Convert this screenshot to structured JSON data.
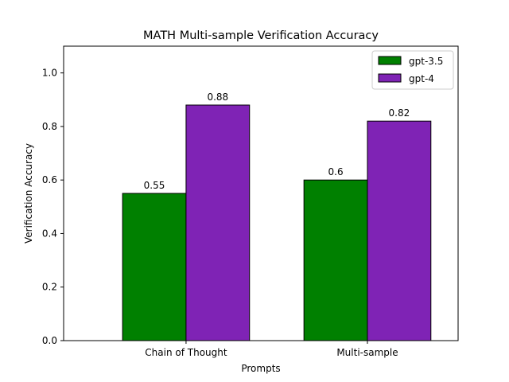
{
  "chart_data": {
    "type": "bar",
    "title": "MATH Multi-sample Verification Accuracy",
    "xlabel": "Prompts",
    "ylabel": "Verification Accuracy",
    "categories": [
      "Chain of Thought",
      "Multi-sample"
    ],
    "series": [
      {
        "name": "gpt-3.5",
        "values": [
          0.55,
          0.6
        ],
        "labels": [
          "0.55",
          "0.6"
        ],
        "color": "#008000"
      },
      {
        "name": "gpt-4",
        "values": [
          0.88,
          0.82
        ],
        "labels": [
          "0.88",
          "0.82"
        ],
        "color": "#7f23b5"
      }
    ],
    "ylim": [
      0,
      1.1
    ],
    "yticks": [
      0.0,
      0.2,
      0.4,
      0.6,
      0.8,
      1.0
    ],
    "ytick_labels": [
      "0.0",
      "0.2",
      "0.4",
      "0.6",
      "0.8",
      "1.0"
    ],
    "grid": false,
    "legend_position": "top-right",
    "bar_edge_color": "#000000"
  }
}
